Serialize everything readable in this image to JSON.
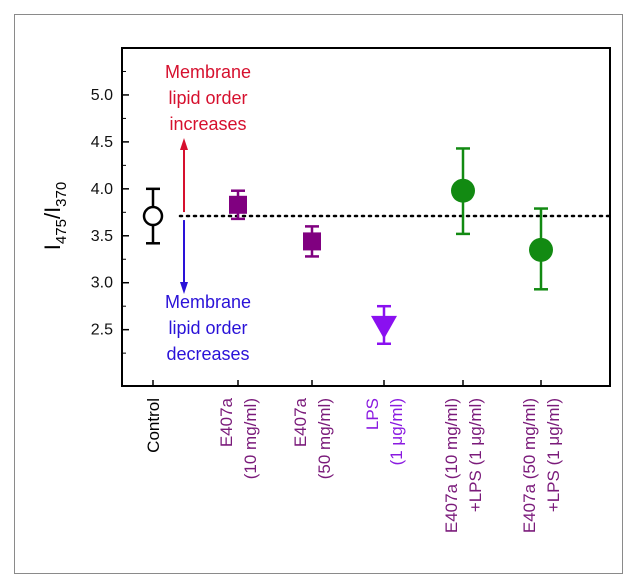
{
  "chart_data": {
    "type": "scatter",
    "title": "",
    "ylabel": {
      "main": "I",
      "sub1": "475",
      "sep": "/I",
      "sub2": "370"
    },
    "ylim": [
      1.9,
      5.5
    ],
    "yticks": [
      "2.5",
      "3.0",
      "3.5",
      "4.0",
      "4.5",
      "5.0"
    ],
    "yticks_values": [
      2.5,
      3.0,
      3.5,
      4.0,
      4.5,
      5.0
    ],
    "reference_line": 3.71,
    "categories": [
      {
        "line1": "Control",
        "line2": "",
        "color": "#000000"
      },
      {
        "line1": "E407a",
        "line2": "(10 mg/ml)",
        "color": "#7a1a7a"
      },
      {
        "line1": "E407a",
        "line2": "(50 mg/ml)",
        "color": "#7a1a7a"
      },
      {
        "line1": "LPS",
        "line2": "(1 μg/ml)",
        "color": "#8a1ae0"
      },
      {
        "line1": "E407a (10 mg/ml)",
        "line2": "+LPS  (1 μg/ml)",
        "color": "#7a1a7a"
      },
      {
        "line1": "E407a (50 mg/ml)",
        "line2": "+LPS  (1 μg/ml)",
        "color": "#7a1a7a"
      }
    ],
    "points": [
      {
        "value": 3.71,
        "err_low": 3.42,
        "err_high": 4.0,
        "marker": "open-circle",
        "color": "#000000"
      },
      {
        "value": 3.83,
        "err_low": 3.68,
        "err_high": 3.98,
        "marker": "square",
        "color": "#800080"
      },
      {
        "value": 3.44,
        "err_low": 3.28,
        "err_high": 3.6,
        "marker": "square",
        "color": "#800080"
      },
      {
        "value": 2.53,
        "err_low": 2.35,
        "err_high": 2.75,
        "marker": "triangle-down",
        "color": "#8a10f0"
      },
      {
        "value": 3.98,
        "err_low": 3.52,
        "err_high": 4.43,
        "marker": "circle",
        "color": "#128a12"
      },
      {
        "value": 3.35,
        "err_low": 2.93,
        "err_high": 3.79,
        "marker": "circle",
        "color": "#128a12"
      }
    ],
    "annotations": {
      "increase": {
        "lines": [
          "Membrane",
          "lipid order",
          "increases"
        ],
        "color": "#d6102e"
      },
      "decrease": {
        "lines": [
          "Membrane",
          "lipid order",
          "decreases"
        ],
        "color": "#2a12d8"
      }
    },
    "grid": false
  }
}
